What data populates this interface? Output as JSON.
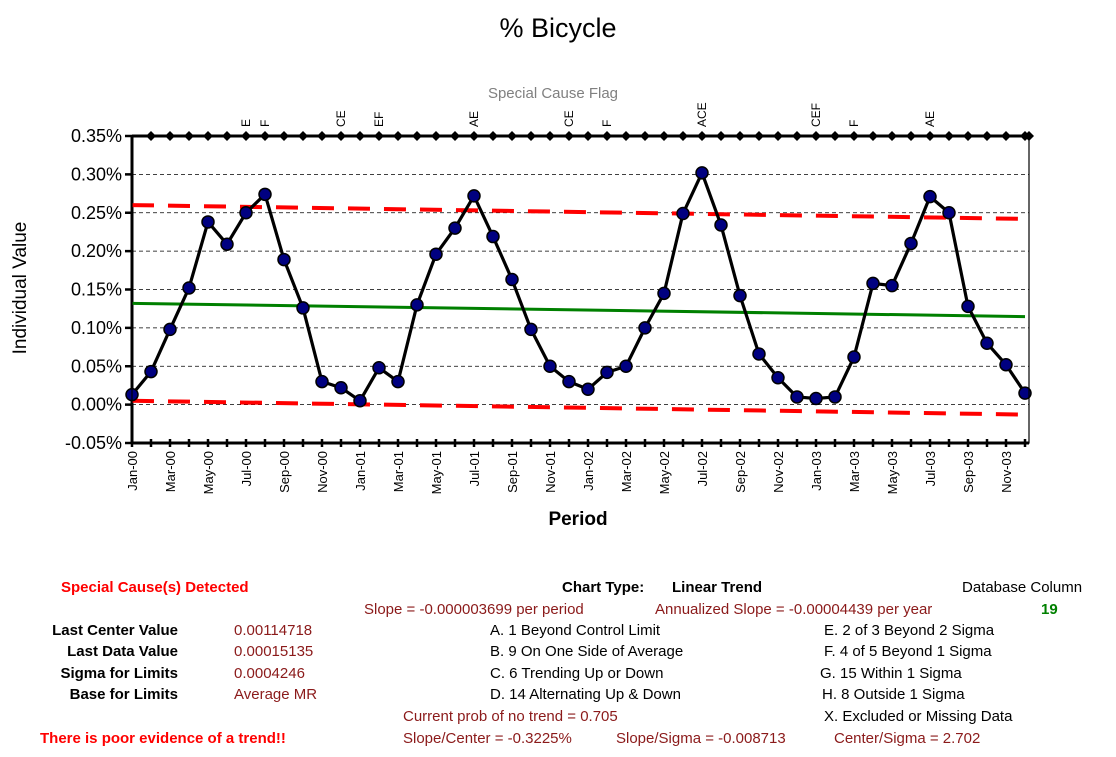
{
  "chart_data": {
    "type": "line",
    "title": "% Bicycle",
    "flag_title": "Special Cause Flag",
    "xlabel": "Period",
    "ylabel": "Individual Value",
    "ylim": [
      -0.0005,
      0.0035
    ],
    "yticks": [
      "0.35%",
      "0.30%",
      "0.25%",
      "0.20%",
      "0.15%",
      "0.10%",
      "0.05%",
      "0.00%",
      "-0.05%"
    ],
    "ytick_values": [
      0.0035,
      0.003,
      0.0025,
      0.002,
      0.0015,
      0.001,
      0.0005,
      0.0,
      -0.0005
    ],
    "grid": "horizontal dashed",
    "periods": [
      "Jan-00",
      "Feb-00",
      "Mar-00",
      "Apr-00",
      "May-00",
      "Jun-00",
      "Jul-00",
      "Aug-00",
      "Sep-00",
      "Oct-00",
      "Nov-00",
      "Dec-00",
      "Jan-01",
      "Feb-01",
      "Mar-01",
      "Apr-01",
      "May-01",
      "Jun-01",
      "Jul-01",
      "Aug-01",
      "Sep-01",
      "Oct-01",
      "Nov-01",
      "Dec-01",
      "Jan-02",
      "Feb-02",
      "Mar-02",
      "Apr-02",
      "May-02",
      "Jun-02",
      "Jul-02",
      "Aug-02",
      "Sep-02",
      "Oct-02",
      "Nov-02",
      "Dec-02",
      "Jan-03",
      "Feb-03",
      "Mar-03",
      "Apr-03",
      "May-03",
      "Jun-03",
      "Jul-03",
      "Aug-03",
      "Sep-03",
      "Oct-03",
      "Nov-03",
      "Dec-03"
    ],
    "x_tick_labels": [
      "Jan-00",
      "Mar-00",
      "May-00",
      "Jul-00",
      "Sep-00",
      "Nov-00",
      "Jan-01",
      "Mar-01",
      "May-01",
      "Jul-01",
      "Sep-01",
      "Nov-01",
      "Jan-02",
      "Mar-02",
      "May-02",
      "Jul-02",
      "Sep-02",
      "Nov-02",
      "Jan-03",
      "Mar-03",
      "May-03",
      "Jul-03",
      "Sep-03",
      "Nov-03"
    ],
    "series": [
      {
        "name": "Individual Value",
        "color": "#000000",
        "marker_color": "#000080",
        "values": [
          0.00013,
          0.00043,
          0.00098,
          0.00152,
          0.00238,
          0.00209,
          0.0025,
          0.00274,
          0.00189,
          0.00126,
          0.0003,
          0.00022,
          5e-05,
          0.00048,
          0.0003,
          0.0013,
          0.00196,
          0.0023,
          0.00272,
          0.00219,
          0.00163,
          0.00098,
          0.0005,
          0.0003,
          0.0002,
          0.00042,
          0.0005,
          0.001,
          0.00145,
          0.00249,
          0.00302,
          0.00234,
          0.00142,
          0.00066,
          0.00035,
          0.0001,
          8e-05,
          0.0001,
          0.00062,
          0.00158,
          0.00155,
          0.0021,
          0.00271,
          0.0025,
          0.00128,
          0.0008,
          0.00052,
          0.00015
        ]
      },
      {
        "name": "Center Line",
        "color": "#008000",
        "start": 0.00132,
        "end": 0.00114718
      },
      {
        "name": "Upper Control Limit",
        "color": "#ff0000",
        "start": 0.0026,
        "end": 0.00242
      },
      {
        "name": "Lower Control Limit",
        "color": "#ff0000",
        "start": 5e-05,
        "end": -0.00013
      }
    ],
    "flag_marker_color": "#000000",
    "flags": [
      "",
      "",
      "",
      "",
      "",
      "",
      "E",
      "F",
      "",
      "",
      "",
      "CE",
      "",
      "EF",
      "",
      "",
      "",
      "",
      "AE",
      "",
      "",
      "",
      "",
      "CE",
      "",
      "F",
      "",
      "",
      "",
      "",
      "ACE",
      "",
      "",
      "",
      "",
      "",
      "CEF",
      "",
      "F",
      "",
      "",
      "",
      "AE",
      "",
      "",
      "",
      "",
      ""
    ]
  },
  "panel": {
    "special_cause": "Special Cause(s) Detected",
    "chart_type_label": "Chart Type:",
    "chart_type_value": "Linear Trend",
    "database_column_label": "Database Column",
    "database_column_value": "19",
    "slope": "Slope = -0.000003699 per period",
    "annualized_slope": "Annualized Slope = -0.00004439 per year",
    "last_center_label": "Last Center Value",
    "last_center_value": "0.00114718",
    "last_data_label": "Last Data Value",
    "last_data_value": "0.00015135",
    "sigma_label": "Sigma for Limits",
    "sigma_value": "0.0004246",
    "base_label": "Base for Limits",
    "base_value": "Average MR",
    "rule_a": "A.  1 Beyond Control Limit",
    "rule_b": "B.  9 On One Side of Average",
    "rule_c": "C.  6 Trending Up or Down",
    "rule_d": "D.  14 Alternating  Up & Down",
    "rule_e": "E.   2 of 3 Beyond 2 Sigma",
    "rule_f": "F.   4 of 5 Beyond 1 Sigma",
    "rule_g": "G.   15 Within 1 Sigma",
    "rule_h": "H.   8 Outside 1 Sigma",
    "rule_x": "X.   Excluded or Missing Data",
    "prob_no_trend": "Current prob of no trend = 0.705",
    "poor_evidence": "There is poor evidence of a trend!!",
    "slope_center": "Slope/Center = -0.3225%",
    "slope_sigma": "Slope/Sigma = -0.008713",
    "center_sigma": "Center/Sigma = 2.702"
  }
}
